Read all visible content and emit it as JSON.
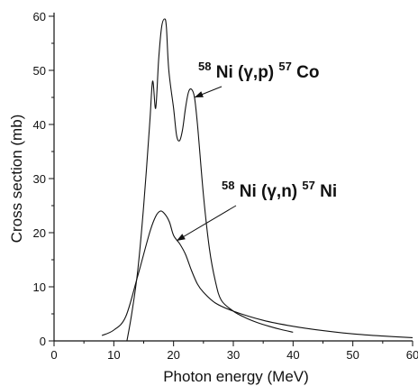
{
  "chart_data": {
    "type": "line",
    "xlabel": "Photon energy (MeV)",
    "ylabel": "Cross section (mb)",
    "xlim": [
      0,
      60
    ],
    "ylim": [
      0,
      60
    ],
    "xticks": [
      "0",
      "10",
      "20",
      "30",
      "40",
      "50",
      "60"
    ],
    "yticks": [
      "0",
      "10",
      "20",
      "30",
      "40",
      "50",
      "60"
    ],
    "grid": false,
    "series": [
      {
        "name": "58Ni(γ,p)57Co",
        "x": [
          12.2,
          13,
          14,
          15,
          16,
          16.5,
          17,
          17.5,
          18,
          18.5,
          18.8,
          19.2,
          20,
          20.5,
          21,
          21.5,
          22,
          22.5,
          23,
          23.5,
          24,
          25,
          26,
          27,
          28,
          30,
          32,
          34,
          36,
          38,
          40
        ],
        "values": [
          0,
          5,
          13,
          25,
          40,
          48,
          43,
          52,
          58,
          59.5,
          58,
          50,
          43,
          38,
          37,
          39,
          43,
          46,
          46.5,
          45,
          40,
          27,
          17,
          11,
          7.5,
          5.5,
          4.3,
          3.4,
          2.7,
          2.1,
          1.6
        ]
      },
      {
        "name": "58Ni(γ,n)57Ni",
        "x": [
          8,
          10,
          12,
          14,
          16,
          17,
          17.8,
          18.5,
          19.3,
          20,
          21,
          22,
          23,
          24,
          25,
          27,
          30,
          35,
          40,
          45,
          50,
          55,
          60
        ],
        "values": [
          1,
          2,
          4.5,
          12,
          20,
          23,
          24,
          23.5,
          22,
          19.5,
          18,
          16,
          13,
          10.5,
          9,
          7,
          5.5,
          3.8,
          2.7,
          1.9,
          1.3,
          0.9,
          0.6
        ]
      }
    ],
    "annotations": [
      {
        "mass": "58",
        "element": "Ni",
        "reaction": "(γ,p)",
        "product_mass": "57",
        "product": "Co",
        "target_series": 0,
        "target_x": 23.5,
        "target_y": 45
      },
      {
        "mass": "58",
        "element": "Ni",
        "reaction": "(γ,n)",
        "product_mass": "57",
        "product": "Ni",
        "target_series": 1,
        "target_x": 20.5,
        "target_y": 18.5
      }
    ]
  }
}
